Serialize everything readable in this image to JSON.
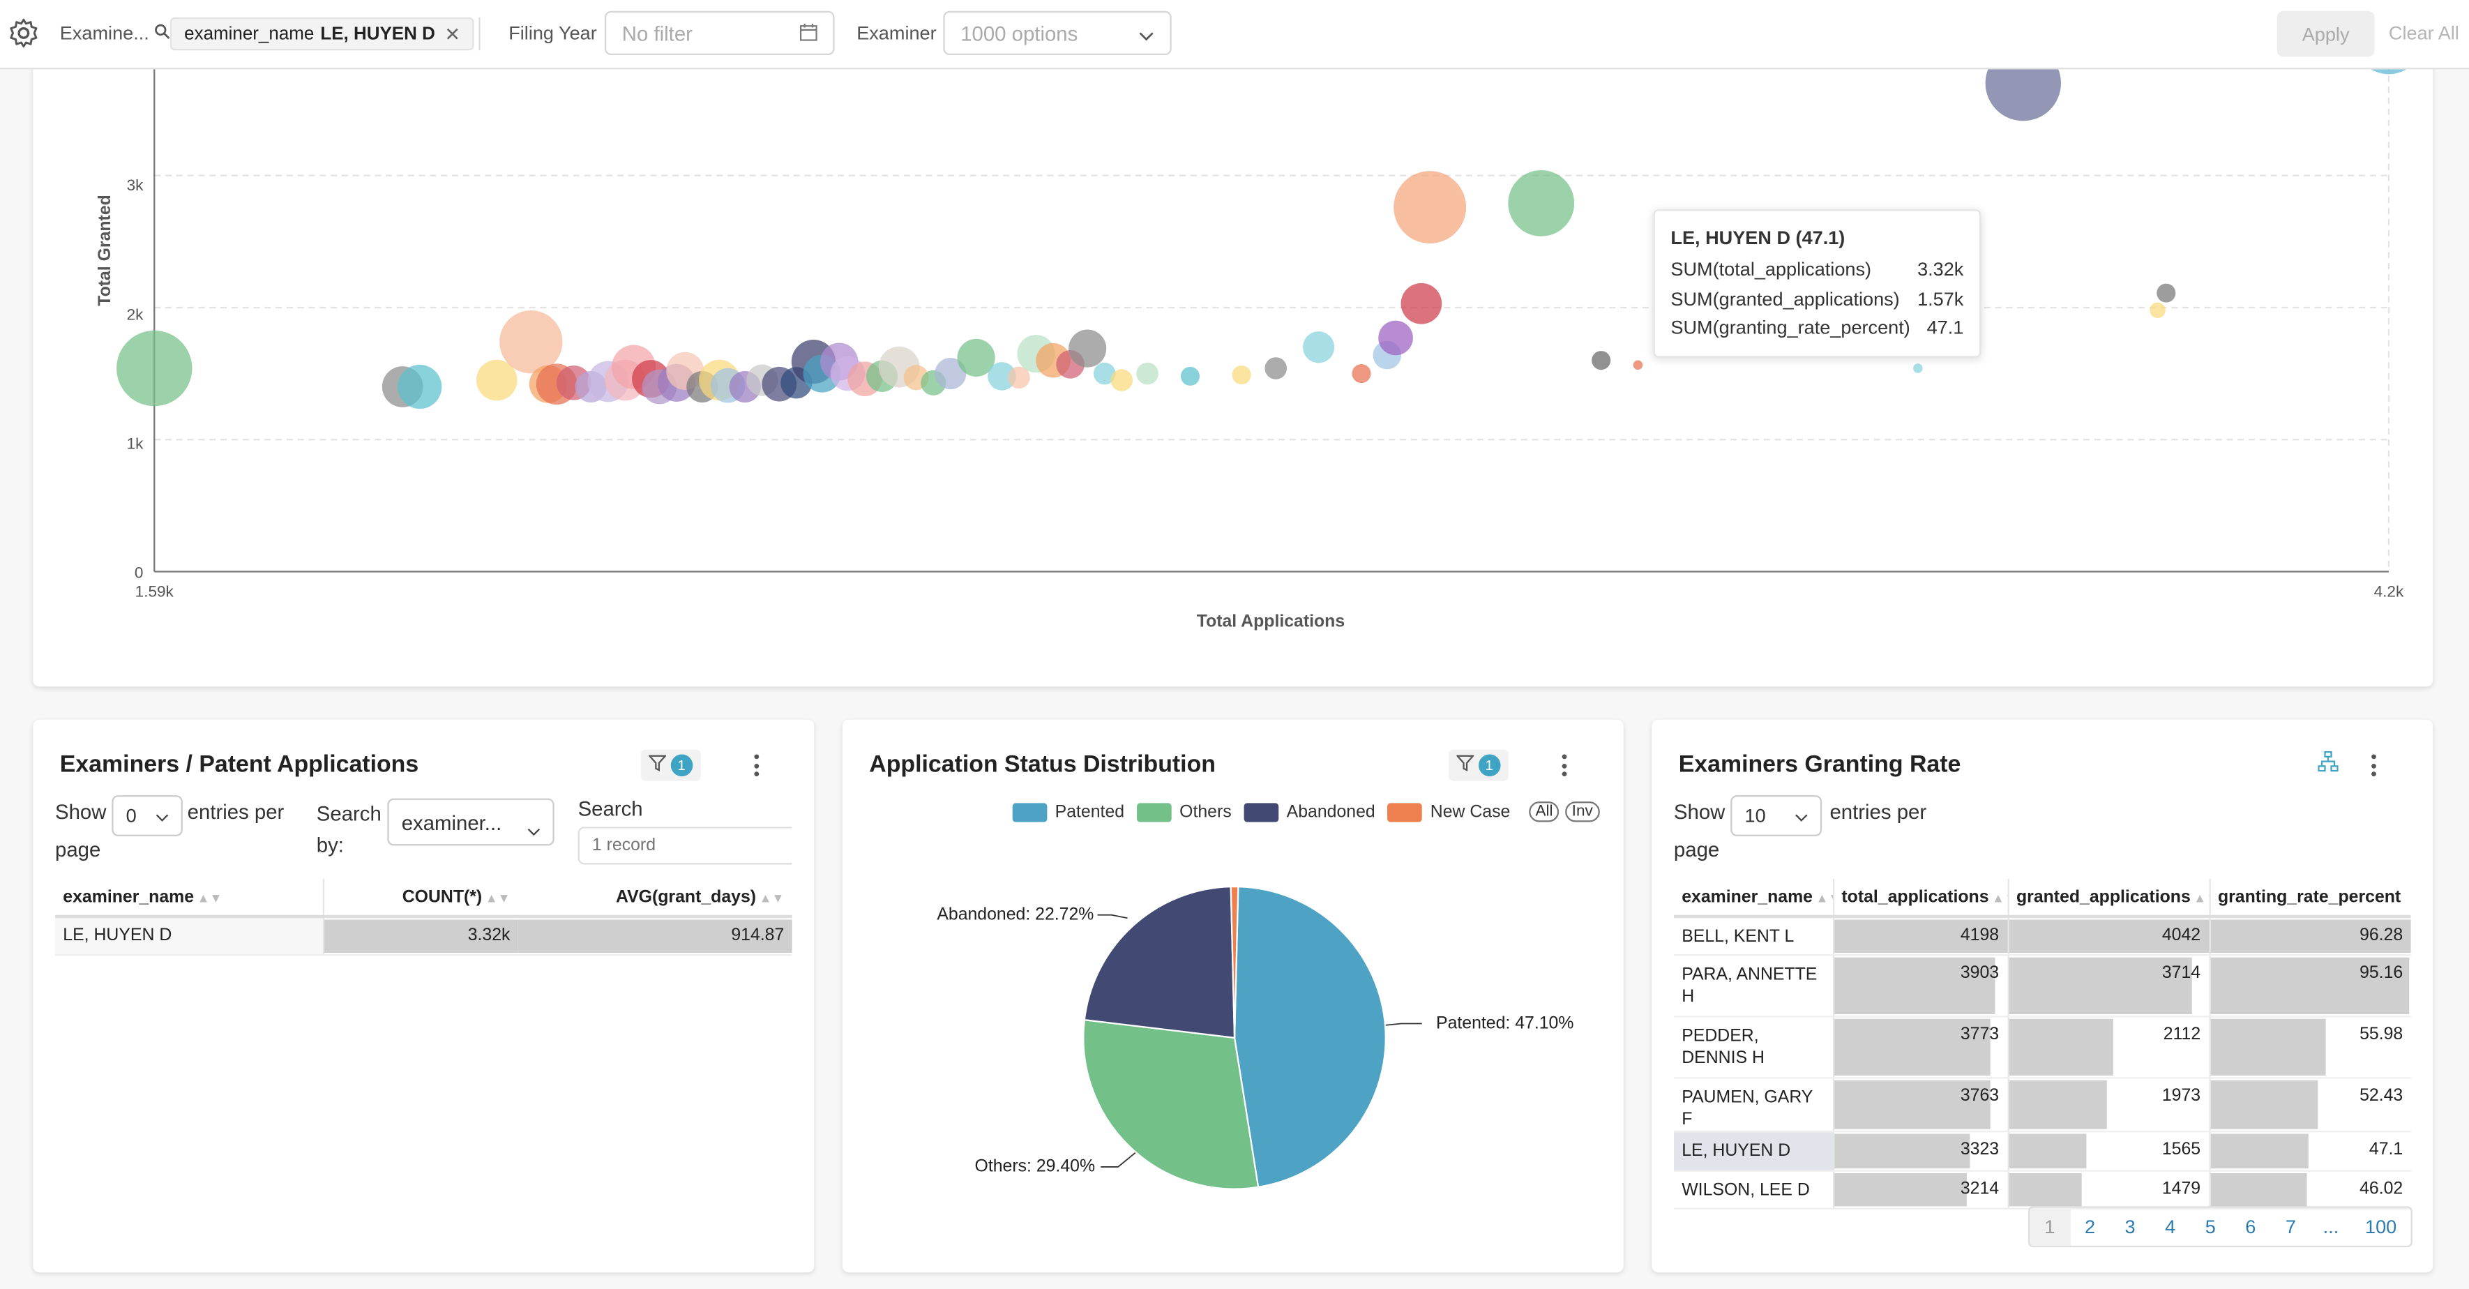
{
  "filter_bar": {
    "search_label": "Examine...",
    "chip_key": "examiner_name",
    "chip_value": "LE, HUYEN D",
    "filing_year_label": "Filing Year",
    "filing_year_placeholder": "No filter",
    "examiner_label": "Examiner",
    "examiner_placeholder": "1000 options",
    "apply_label": "Apply",
    "clear_label": "Clear All"
  },
  "scatter": {
    "xlabel": "Total Applications",
    "ylabel": "Total Granted",
    "x_ticks": [
      "1.59k",
      "4.2k"
    ],
    "y_ticks": [
      "0",
      "1k",
      "2k",
      "3k"
    ],
    "tooltip": {
      "title": "LE, HUYEN D (47.1)",
      "rows": [
        {
          "k": "SUM(total_applications)",
          "v": "3.32k"
        },
        {
          "k": "SUM(granted_applications)",
          "v": "1.57k"
        },
        {
          "k": "SUM(granting_rate_percent)",
          "v": "47.1"
        }
      ]
    }
  },
  "chart_data": [
    {
      "type": "scatter",
      "xlabel": "Total Applications",
      "ylabel": "Total Granted",
      "xlim": [
        1590,
        4200
      ],
      "ylim": [
        0,
        3900
      ],
      "points": [
        {
          "x": 1590,
          "y": 1540,
          "r": 24,
          "color": "#74c089"
        },
        {
          "x": 1880,
          "y": 1400,
          "r": 13,
          "color": "#8c8c8c"
        },
        {
          "x": 1900,
          "y": 1400,
          "r": 14,
          "color": "#5bc0cf"
        },
        {
          "x": 1990,
          "y": 1450,
          "r": 13,
          "color": "#f9d97a"
        },
        {
          "x": 2030,
          "y": 1740,
          "r": 20,
          "color": "#f6b89a"
        },
        {
          "x": 2050,
          "y": 1420,
          "r": 12,
          "color": "#f4a261"
        },
        {
          "x": 2060,
          "y": 1420,
          "r": 13,
          "color": "#e76f51"
        },
        {
          "x": 2080,
          "y": 1430,
          "r": 11,
          "color": "#cf5f73"
        },
        {
          "x": 2100,
          "y": 1400,
          "r": 10,
          "color": "#b8a3d9"
        },
        {
          "x": 2120,
          "y": 1440,
          "r": 13,
          "color": "#c6b7e2"
        },
        {
          "x": 2140,
          "y": 1450,
          "r": 13,
          "color": "#f3b6bd"
        },
        {
          "x": 2150,
          "y": 1550,
          "r": 14,
          "color": "#f2a5a9"
        },
        {
          "x": 2170,
          "y": 1460,
          "r": 12,
          "color": "#cf3b4a"
        },
        {
          "x": 2180,
          "y": 1400,
          "r": 11,
          "color": "#b296c8"
        },
        {
          "x": 2200,
          "y": 1430,
          "r": 12,
          "color": "#9b7cc0"
        },
        {
          "x": 2210,
          "y": 1520,
          "r": 12,
          "color": "#f5c6b5"
        },
        {
          "x": 2230,
          "y": 1400,
          "r": 10,
          "color": "#7a7a7a"
        },
        {
          "x": 2250,
          "y": 1450,
          "r": 13,
          "color": "#f9d97a"
        },
        {
          "x": 2260,
          "y": 1410,
          "r": 11,
          "color": "#a0c4e3"
        },
        {
          "x": 2280,
          "y": 1400,
          "r": 10,
          "color": "#9b7cc0"
        },
        {
          "x": 2300,
          "y": 1450,
          "r": 10,
          "color": "#c9c9c9"
        },
        {
          "x": 2320,
          "y": 1420,
          "r": 11,
          "color": "#4c4c7c"
        },
        {
          "x": 2340,
          "y": 1430,
          "r": 10,
          "color": "#2f4b7c"
        },
        {
          "x": 2360,
          "y": 1590,
          "r": 14,
          "color": "#3f3f6e"
        },
        {
          "x": 2370,
          "y": 1500,
          "r": 12,
          "color": "#4aa3c4"
        },
        {
          "x": 2390,
          "y": 1590,
          "r": 12,
          "color": "#b08cd0"
        },
        {
          "x": 2400,
          "y": 1500,
          "r": 11,
          "color": "#d1b3e6"
        },
        {
          "x": 2420,
          "y": 1460,
          "r": 11,
          "color": "#f0a3a0"
        },
        {
          "x": 2440,
          "y": 1480,
          "r": 10,
          "color": "#74c089"
        },
        {
          "x": 2460,
          "y": 1550,
          "r": 13,
          "color": "#dad3c9"
        },
        {
          "x": 2480,
          "y": 1470,
          "r": 8,
          "color": "#f4c08b"
        },
        {
          "x": 2500,
          "y": 1430,
          "r": 8,
          "color": "#74c089"
        },
        {
          "x": 2520,
          "y": 1500,
          "r": 10,
          "color": "#a9b6d6"
        },
        {
          "x": 2550,
          "y": 1620,
          "r": 12,
          "color": "#74c089"
        },
        {
          "x": 2580,
          "y": 1480,
          "r": 9,
          "color": "#86d3dd"
        },
        {
          "x": 2600,
          "y": 1470,
          "r": 7,
          "color": "#f6c4a7"
        },
        {
          "x": 2620,
          "y": 1650,
          "r": 12,
          "color": "#b7e0c3"
        },
        {
          "x": 2640,
          "y": 1600,
          "r": 11,
          "color": "#f4a261"
        },
        {
          "x": 2660,
          "y": 1570,
          "r": 9,
          "color": "#cf5f73"
        },
        {
          "x": 2680,
          "y": 1690,
          "r": 12,
          "color": "#8c8c8c"
        },
        {
          "x": 2700,
          "y": 1500,
          "r": 7,
          "color": "#86d3dd"
        },
        {
          "x": 2720,
          "y": 1450,
          "r": 7,
          "color": "#f9d97a"
        },
        {
          "x": 2750,
          "y": 1500,
          "r": 7,
          "color": "#b7e0c3"
        },
        {
          "x": 2800,
          "y": 1480,
          "r": 6,
          "color": "#5bc0cf"
        },
        {
          "x": 2860,
          "y": 1490,
          "r": 6,
          "color": "#f9d97a"
        },
        {
          "x": 2900,
          "y": 1540,
          "r": 7,
          "color": "#8c8c8c"
        },
        {
          "x": 2950,
          "y": 1700,
          "r": 10,
          "color": "#86d3dd"
        },
        {
          "x": 3000,
          "y": 1500,
          "r": 6,
          "color": "#e76f51"
        },
        {
          "x": 3030,
          "y": 1640,
          "r": 9,
          "color": "#a0c4e3"
        },
        {
          "x": 3040,
          "y": 1770,
          "r": 11,
          "color": "#9b5fc0"
        },
        {
          "x": 3070,
          "y": 2030,
          "r": 13,
          "color": "#cf3b4a"
        },
        {
          "x": 3080,
          "y": 2760,
          "r": 23,
          "color": "#f4a57b"
        },
        {
          "x": 3210,
          "y": 2790,
          "r": 21,
          "color": "#74c089"
        },
        {
          "x": 3280,
          "y": 1600,
          "r": 6,
          "color": "#666666"
        },
        {
          "x": 3500,
          "y": 1770,
          "r": 6,
          "color": "#a9a9c9"
        },
        {
          "x": 3650,
          "y": 1540,
          "r": 3,
          "color": "#86d3dd"
        },
        {
          "x": 3323,
          "y": 1565,
          "r": 3,
          "color": "#e76f51"
        },
        {
          "x": 3940,
          "y": 2110,
          "r": 6,
          "color": "#777777"
        },
        {
          "x": 3930,
          "y": 1980,
          "r": 5,
          "color": "#f9d97a"
        },
        {
          "x": 3773,
          "y": 3700,
          "r": 24,
          "color": "#6a6f99"
        },
        {
          "x": 4200,
          "y": 4030,
          "r": 22,
          "color": "#5bb5d6"
        }
      ]
    },
    {
      "type": "pie",
      "title": "Application Status Distribution",
      "categories": [
        "Patented",
        "Others",
        "Abandoned",
        "New Case"
      ],
      "values": [
        47.1,
        29.4,
        22.72,
        0.78
      ],
      "colors": [
        "#4ea3c5",
        "#74c089",
        "#424a74",
        "#ee7f4f"
      ]
    }
  ],
  "table_left": {
    "title": "Examiners / Patent Applications",
    "show_label": "Show",
    "entries_value": "0",
    "entries_label": "entries per",
    "page_label": "page",
    "search_by_label": "Search",
    "search_by_label2": "by:",
    "search_by_value": "examiner...",
    "search_label": "Search",
    "search_placeholder": "1 record",
    "columns": [
      "examiner_name",
      "COUNT(*)",
      "AVG(grant_days)"
    ],
    "rows": [
      [
        "LE, HUYEN D",
        "3.32k",
        "914.87"
      ]
    ]
  },
  "pie": {
    "title": "Application Status Distribution",
    "legend": [
      "Patented",
      "Others",
      "Abandoned",
      "New Case"
    ],
    "pill_all": "All",
    "pill_inv": "Inv",
    "labels": {
      "abandoned": "Abandoned: 22.72%",
      "patented": "Patented: 47.10%",
      "others": "Others: 29.40%"
    }
  },
  "table_right": {
    "title": "Examiners Granting Rate",
    "show_label": "Show",
    "entries_value": "10",
    "entries_label": "entries per",
    "page_label": "page",
    "columns": [
      "examiner_name",
      "total_applications",
      "granted_applications",
      "granting_rate_percent"
    ],
    "rows": [
      {
        "name": "BELL, KENT L",
        "total": "4198",
        "granted": "4042",
        "rate": "96.28",
        "tf": 1.0,
        "gf": 1.0,
        "rf": 1.0
      },
      {
        "name": "PARA, ANNETTE H",
        "total": "3903",
        "granted": "3714",
        "rate": "95.16",
        "tf": 0.93,
        "gf": 0.92,
        "rf": 0.99
      },
      {
        "name": "PEDDER, DENNIS H",
        "total": "3773",
        "granted": "2112",
        "rate": "55.98",
        "tf": 0.9,
        "gf": 0.52,
        "rf": 0.58
      },
      {
        "name": "PAUMEN, GARY F",
        "total": "3763",
        "granted": "1973",
        "rate": "52.43",
        "tf": 0.9,
        "gf": 0.49,
        "rf": 0.54
      },
      {
        "name": "LE, HUYEN D",
        "total": "3323",
        "granted": "1565",
        "rate": "47.1",
        "tf": 0.79,
        "gf": 0.39,
        "rf": 0.49
      },
      {
        "name": "WILSON, LEE D",
        "total": "3214",
        "granted": "1479",
        "rate": "46.02",
        "tf": 0.77,
        "gf": 0.37,
        "rf": 0.48
      }
    ],
    "pages": [
      "1",
      "2",
      "3",
      "4",
      "5",
      "6",
      "7",
      "...",
      "100"
    ]
  }
}
